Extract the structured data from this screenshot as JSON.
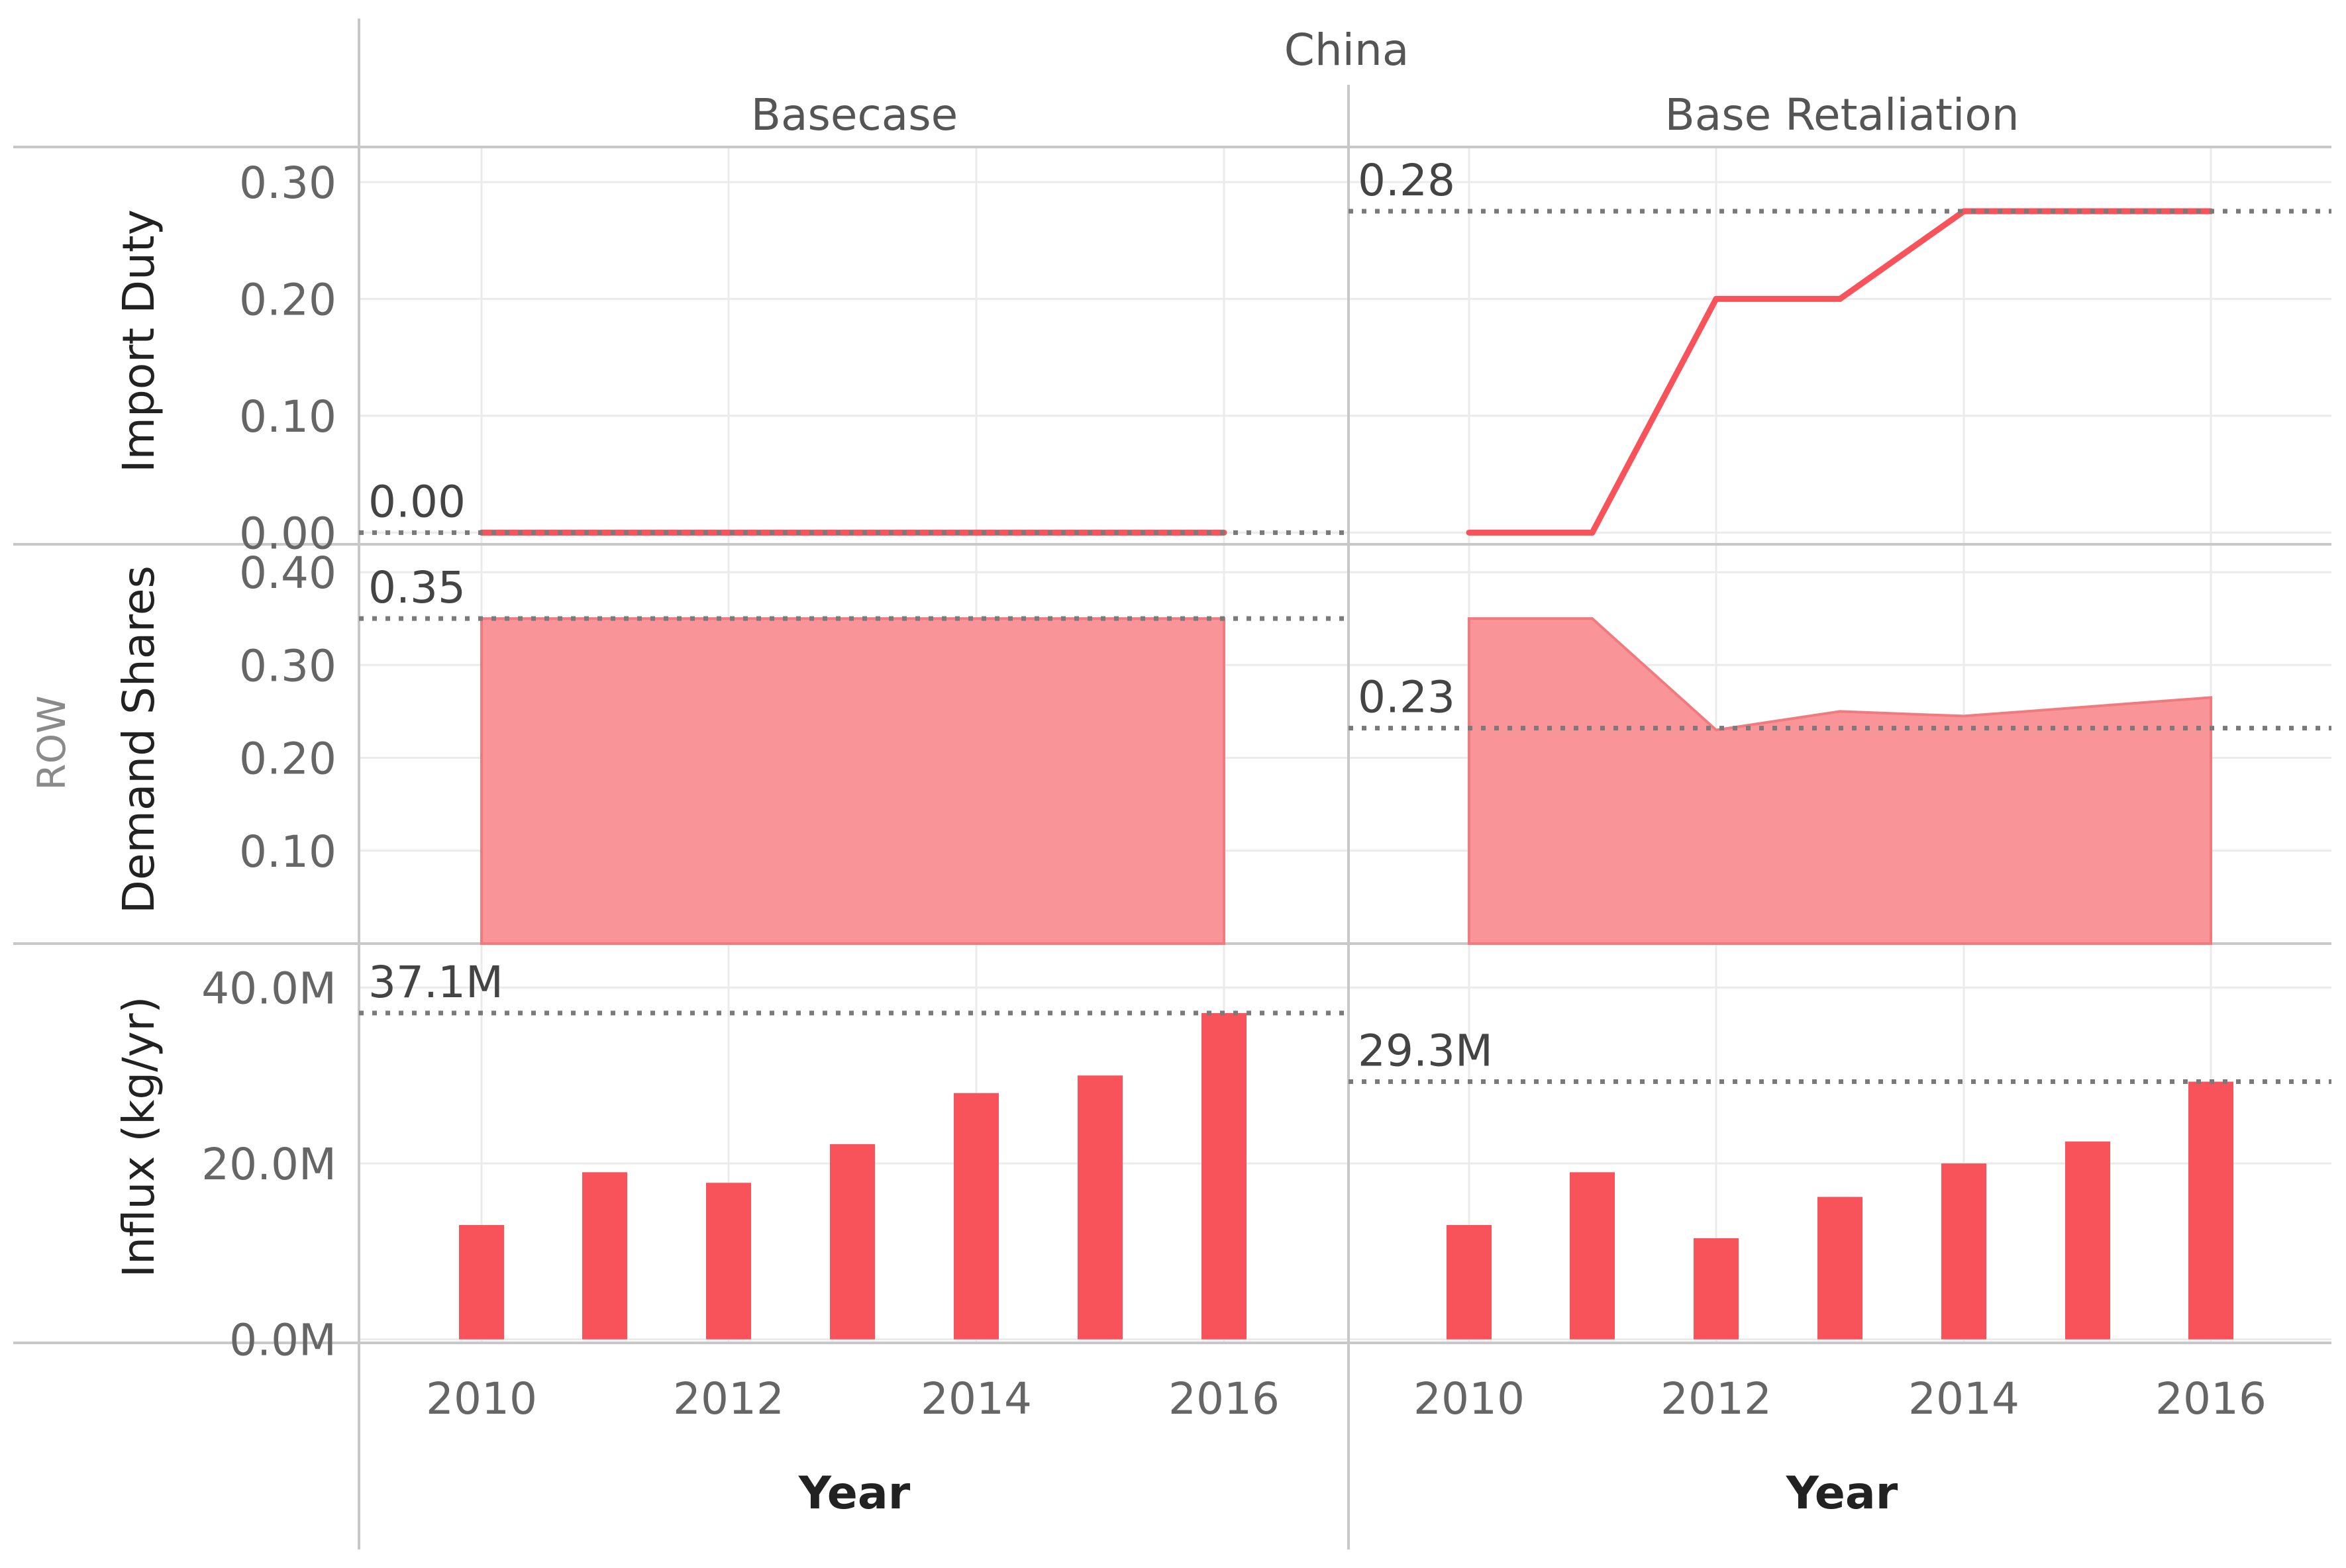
{
  "header": {
    "column_group": "China",
    "columns": [
      "Basecase",
      "Base Retaliation"
    ],
    "row_group": "ROW",
    "rows": [
      "Import Duty",
      "Demand Shares",
      "Influx (kg/yr)"
    ],
    "x_title": "Year"
  },
  "colors": {
    "accent": "#f8535a",
    "area_fill": "#f99598",
    "grid": "#ebebeb",
    "divider": "#c8c8c8",
    "reference_line": "#7a7a7a"
  },
  "chart_data": [
    {
      "type": "line",
      "column": "Basecase",
      "row": "Import Duty",
      "x": [
        2010,
        2011,
        2012,
        2013,
        2014,
        2015,
        2016
      ],
      "y": [
        0,
        0,
        0,
        0,
        0,
        0,
        0
      ],
      "ylim": [
        -0.01,
        0.33
      ],
      "yticks": [
        0.0,
        0.1,
        0.2,
        0.3
      ],
      "ytick_labels": [
        "0.00",
        "0.10",
        "0.20",
        "0.30"
      ],
      "reference_value": 0.0,
      "reference_label": "0.00",
      "grid": true
    },
    {
      "type": "line",
      "column": "Base Retaliation",
      "row": "Import Duty",
      "x": [
        2010,
        2011,
        2012,
        2013,
        2014,
        2015,
        2016
      ],
      "y": [
        0,
        0,
        0.2,
        0.2,
        0.275,
        0.275,
        0.275
      ],
      "ylim": [
        -0.01,
        0.33
      ],
      "reference_value": 0.275,
      "reference_label": "0.28",
      "grid": true
    },
    {
      "type": "area",
      "column": "Basecase",
      "row": "Demand Shares",
      "x": [
        2010,
        2011,
        2012,
        2013,
        2014,
        2015,
        2016
      ],
      "y": [
        0.35,
        0.35,
        0.35,
        0.35,
        0.35,
        0.35,
        0.35
      ],
      "ylim": [
        0,
        0.43
      ],
      "yticks": [
        0.1,
        0.2,
        0.3,
        0.4
      ],
      "ytick_labels": [
        "0.10",
        "0.20",
        "0.30",
        "0.40"
      ],
      "reference_value": 0.35,
      "reference_label": "0.35",
      "grid": true
    },
    {
      "type": "area",
      "column": "Base Retaliation",
      "row": "Demand Shares",
      "x": [
        2010,
        2011,
        2012,
        2013,
        2014,
        2015,
        2016
      ],
      "y": [
        0.35,
        0.35,
        0.23,
        0.25,
        0.245,
        0.255,
        0.265
      ],
      "ylim": [
        0,
        0.43
      ],
      "reference_value": 0.232,
      "reference_label": "0.23",
      "grid": true
    },
    {
      "type": "bar",
      "column": "Basecase",
      "row": "Influx (kg/yr)",
      "categories": [
        2010,
        2011,
        2012,
        2013,
        2014,
        2015,
        2016
      ],
      "values": [
        13000000,
        19000000,
        17800000,
        22200000,
        28000000,
        30000000,
        37100000
      ],
      "ylim": [
        -0.4,
        45
      ],
      "yticks": [
        0,
        20000000,
        40000000
      ],
      "ytick_labels": [
        "0.0M",
        "20.0M",
        "40.0M"
      ],
      "reference_value": 37100000,
      "reference_label": "37.1M",
      "grid": true
    },
    {
      "type": "bar",
      "column": "Base Retaliation",
      "row": "Influx (kg/yr)",
      "categories": [
        2010,
        2011,
        2012,
        2013,
        2014,
        2015,
        2016
      ],
      "values": [
        13000000,
        19000000,
        11500000,
        16200000,
        20000000,
        22500000,
        29300000
      ],
      "ylim": [
        -0.4,
        45
      ],
      "reference_value": 29300000,
      "reference_label": "29.3M",
      "grid": true
    }
  ],
  "x_axis": {
    "ticks": [
      2010,
      2012,
      2014,
      2016
    ],
    "tick_labels": [
      "2010",
      "2012",
      "2014",
      "2016"
    ]
  }
}
